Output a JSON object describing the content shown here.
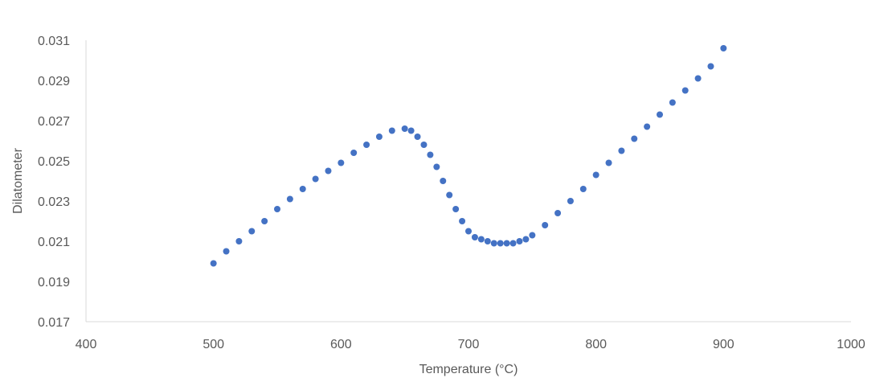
{
  "chart_data": {
    "type": "scatter",
    "title": "",
    "xlabel": "Temperature (°C)",
    "ylabel": "Dilatometer",
    "xlim": [
      400,
      1000
    ],
    "ylim": [
      0.017,
      0.031
    ],
    "x_ticks": [
      "400",
      "500",
      "600",
      "700",
      "800",
      "900",
      "1000"
    ],
    "y_ticks": [
      "0.017",
      "0.019",
      "0.021",
      "0.023",
      "0.025",
      "0.027",
      "0.029",
      "0.031"
    ],
    "grid": false,
    "legend": "none",
    "marker_color": "#4472C4",
    "series": [
      {
        "x": [
          500,
          510,
          520,
          530,
          540,
          550,
          560,
          570,
          580,
          590,
          600,
          610,
          620,
          630,
          640,
          650,
          655,
          660,
          665,
          670,
          675,
          680,
          685,
          690,
          695,
          700,
          705,
          710,
          715,
          720,
          725,
          730,
          735,
          740,
          745,
          750,
          760,
          770,
          780,
          790,
          800,
          810,
          820,
          830,
          840,
          850,
          860,
          870,
          880,
          890,
          900
        ],
        "y": [
          0.0199,
          0.0205,
          0.021,
          0.0215,
          0.022,
          0.0226,
          0.0231,
          0.0236,
          0.0241,
          0.0245,
          0.0249,
          0.0254,
          0.0258,
          0.0262,
          0.0265,
          0.0266,
          0.0265,
          0.0262,
          0.0258,
          0.0253,
          0.0247,
          0.024,
          0.0233,
          0.0226,
          0.022,
          0.0215,
          0.0212,
          0.0211,
          0.021,
          0.0209,
          0.0209,
          0.0209,
          0.0209,
          0.021,
          0.0211,
          0.0213,
          0.0218,
          0.0224,
          0.023,
          0.0236,
          0.0243,
          0.0249,
          0.0255,
          0.0261,
          0.0267,
          0.0273,
          0.0279,
          0.0285,
          0.0291,
          0.0297,
          0.0306
        ]
      }
    ]
  }
}
